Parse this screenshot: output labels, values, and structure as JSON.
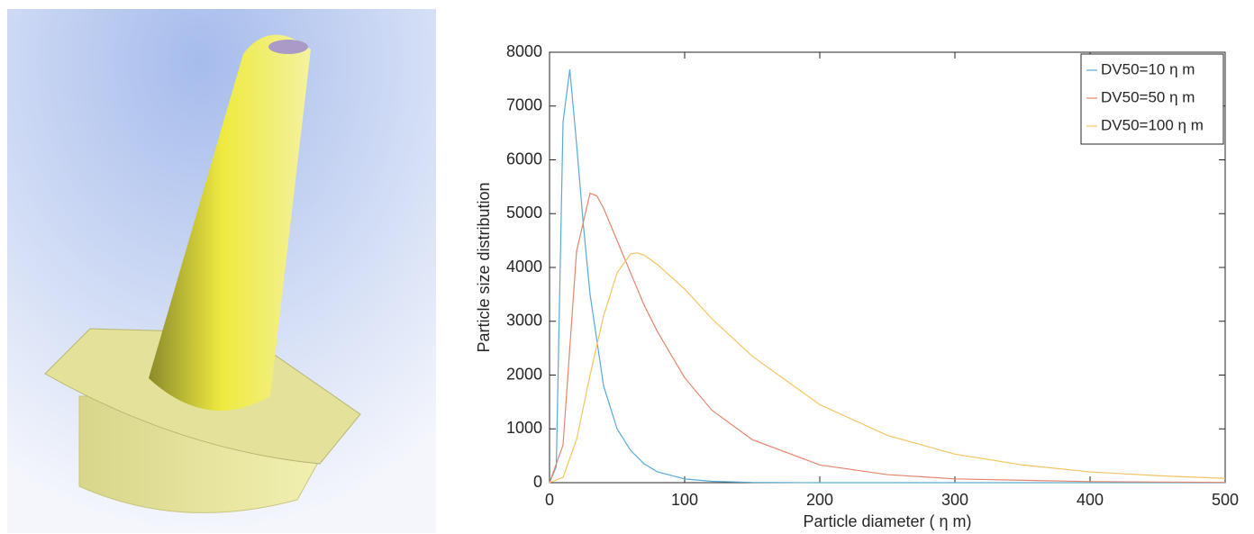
{
  "chart_data": {
    "type": "line",
    "xlabel": "Particle diameter (    η m)",
    "ylabel": "Particle size distribution",
    "xlim": [
      0,
      500
    ],
    "ylim": [
      0,
      8000
    ],
    "xticks": [
      0,
      100,
      200,
      300,
      400,
      500
    ],
    "yticks": [
      0,
      1000,
      2000,
      3000,
      4000,
      5000,
      6000,
      7000,
      8000
    ],
    "legend": "upper right",
    "series": [
      {
        "name": "DV50=10  η m",
        "color": "#5aaad8",
        "x": [
          0,
          5,
          10,
          15,
          20,
          25,
          30,
          40,
          50,
          60,
          70,
          80,
          100,
          120,
          150,
          200,
          300,
          500
        ],
        "values": [
          0,
          300,
          6700,
          7680,
          6300,
          4800,
          3500,
          1800,
          1000,
          600,
          350,
          200,
          70,
          25,
          5,
          0,
          0,
          0
        ]
      },
      {
        "name": "DV50=50  η m",
        "color": "#e4866e",
        "x": [
          0,
          10,
          20,
          30,
          35,
          40,
          50,
          60,
          70,
          80,
          100,
          120,
          150,
          200,
          250,
          300,
          400,
          500
        ],
        "values": [
          0,
          700,
          4300,
          5380,
          5330,
          5100,
          4500,
          3900,
          3300,
          2800,
          1950,
          1350,
          800,
          330,
          150,
          70,
          20,
          5
        ]
      },
      {
        "name": "DV50=100  η m",
        "color": "#f5c462",
        "x": [
          0,
          10,
          20,
          30,
          40,
          50,
          60,
          65,
          70,
          80,
          100,
          120,
          150,
          200,
          250,
          300,
          350,
          400,
          450,
          500
        ],
        "values": [
          0,
          100,
          800,
          2000,
          3100,
          3900,
          4250,
          4270,
          4230,
          4050,
          3600,
          3050,
          2350,
          1450,
          880,
          530,
          330,
          200,
          130,
          80
        ]
      }
    ]
  }
}
